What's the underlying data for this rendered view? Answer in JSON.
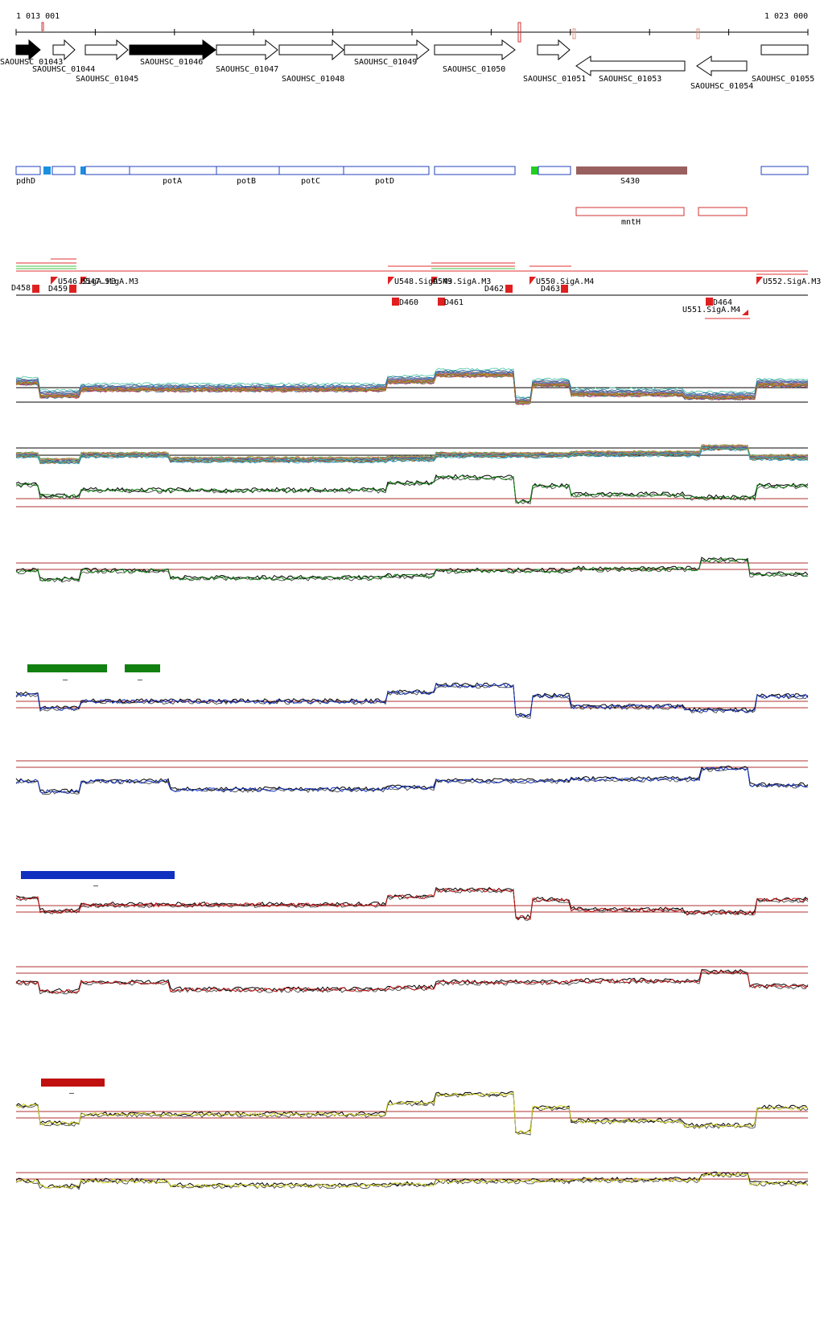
{
  "ruler": {
    "start_label": "1 013 001",
    "end_label": "1 023 000"
  },
  "genes": {
    "labels": [
      "SAOUHSC_01043",
      "SAOUHSC_01044",
      "SAOUHSC_01045",
      "SAOUHSC_01046",
      "SAOUHSC_01047",
      "SAOUHSC_01048",
      "SAOUHSC_01049",
      "SAOUHSC_01050",
      "SAOUHSC_01051",
      "SAOUHSC_01053",
      "SAOUHSC_01054",
      "SAOUHSC_01055"
    ],
    "strands": [
      "+",
      "+",
      "+",
      "+",
      "+",
      "+",
      "+",
      "+",
      "+",
      "-",
      "-",
      "+"
    ],
    "highlighted": [
      true,
      false,
      false,
      true,
      false,
      false,
      false,
      false,
      false,
      false,
      false,
      false
    ]
  },
  "annotations": {
    "labels": [
      "pdhD",
      "potA",
      "potB",
      "potC",
      "potD",
      "S430",
      "mntH"
    ]
  },
  "regulatory": {
    "labels": [
      "D458",
      "U546.SigA.M3",
      "U547.SigA.M3",
      "D459",
      "U548.SigA.M3",
      "U549.SigA.M3",
      "D460",
      "D461",
      "D462",
      "U550.SigA.M4",
      "D463",
      "D464",
      "U551.SigA.M4",
      "U552.SigA.M3"
    ]
  },
  "conditions": {
    "labels": [
      "–",
      "–",
      "–",
      "–"
    ],
    "colors": [
      "#108010",
      "#1030c0",
      "#c01010",
      "#d0d020"
    ]
  }
}
